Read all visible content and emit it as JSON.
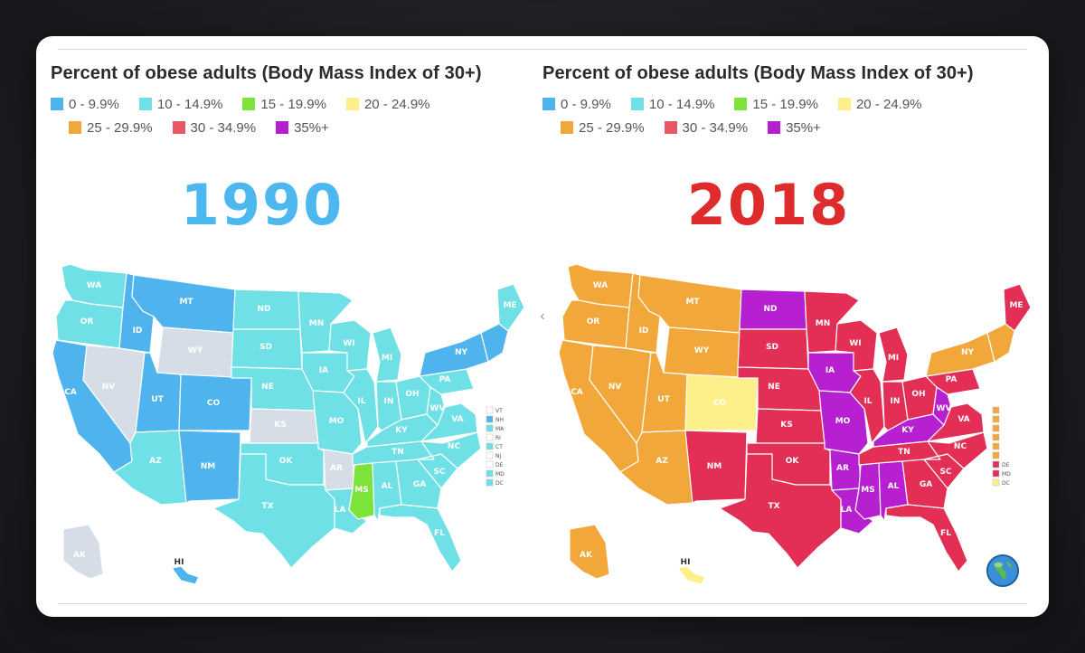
{
  "heading": "Percent of obese adults (Body Mass Index of 30+)",
  "legend": [
    {
      "label": "0 - 9.9%",
      "color": "#4fb4ee"
    },
    {
      "label": "10 - 14.9%",
      "color": "#6fe0e6"
    },
    {
      "label": "15 - 19.9%",
      "color": "#7ce33b"
    },
    {
      "label": "20 - 24.9%",
      "color": "#fdf08a"
    },
    {
      "label": "25 - 29.9%",
      "color": "#f2a73a"
    },
    {
      "label": "30 - 34.9%",
      "color": "#e85766"
    },
    {
      "label": "35%+",
      "color": "#b620d0"
    }
  ],
  "panels": [
    {
      "year": "1990",
      "year_color": "#4cb8ef",
      "states": {
        "WA": "#6fe0e6",
        "OR": "#6fe0e6",
        "CA": "#4fb4ee",
        "NV": "#d7dde6",
        "ID": "#4fb4ee",
        "MT": "#4fb4ee",
        "WY": "#d7dde6",
        "UT": "#4fb4ee",
        "CO": "#4fb4ee",
        "AZ": "#6fe0e6",
        "NM": "#4fb4ee",
        "ND": "#6fe0e6",
        "SD": "#6fe0e6",
        "NE": "#6fe0e6",
        "KS": "#d7dde6",
        "OK": "#6fe0e6",
        "TX": "#6fe0e6",
        "MN": "#6fe0e6",
        "IA": "#6fe0e6",
        "MO": "#6fe0e6",
        "AR": "#d7dde6",
        "LA": "#6fe0e6",
        "WI": "#6fe0e6",
        "IL": "#6fe0e6",
        "MI": "#6fe0e6",
        "IN": "#6fe0e6",
        "OH": "#6fe0e6",
        "KY": "#6fe0e6",
        "TN": "#6fe0e6",
        "MS": "#7ce33b",
        "AL": "#6fe0e6",
        "GA": "#6fe0e6",
        "FL": "#6fe0e6",
        "SC": "#6fe0e6",
        "NC": "#6fe0e6",
        "VA": "#6fe0e6",
        "WV": "#6fe0e6",
        "PA": "#6fe0e6",
        "NY": "#4fb4ee",
        "ME": "#6fe0e6",
        "NE_states": "#4fb4ee",
        "AK": "#d7dde6",
        "HI": "#4fb4ee"
      },
      "side_list": [
        {
          "code": "VT",
          "color": "#ffffff"
        },
        {
          "code": "NH",
          "color": "#4fb4ee"
        },
        {
          "code": "MA",
          "color": "#6fe0e6"
        },
        {
          "code": "RI",
          "color": "#ffffff"
        },
        {
          "code": "CT",
          "color": "#6fe0e6"
        },
        {
          "code": "NJ",
          "color": "#ffffff"
        },
        {
          "code": "DE",
          "color": "#ffffff"
        },
        {
          "code": "MD",
          "color": "#6fe0e6"
        },
        {
          "code": "DC",
          "color": "#6fe0e6"
        }
      ]
    },
    {
      "year": "2018",
      "year_color": "#de2c2c",
      "states": {
        "WA": "#f2a73a",
        "OR": "#f2a73a",
        "CA": "#f2a73a",
        "NV": "#f2a73a",
        "ID": "#f2a73a",
        "MT": "#f2a73a",
        "WY": "#f2a73a",
        "UT": "#f2a73a",
        "CO": "#fdf08a",
        "AZ": "#f2a73a",
        "NM": "#e32e55",
        "ND": "#b620d0",
        "SD": "#e32e55",
        "NE": "#e32e55",
        "KS": "#e32e55",
        "OK": "#e32e55",
        "TX": "#e32e55",
        "MN": "#e32e55",
        "IA": "#b620d0",
        "MO": "#b620d0",
        "AR": "#b620d0",
        "LA": "#b620d0",
        "WI": "#e32e55",
        "IL": "#e32e55",
        "MI": "#e32e55",
        "IN": "#e32e55",
        "OH": "#e32e55",
        "KY": "#b620d0",
        "TN": "#e32e55",
        "MS": "#b620d0",
        "AL": "#b620d0",
        "GA": "#e32e55",
        "FL": "#e32e55",
        "SC": "#e32e55",
        "NC": "#e32e55",
        "VA": "#e32e55",
        "WV": "#b620d0",
        "PA": "#e32e55",
        "NY": "#f2a73a",
        "ME": "#e32e55",
        "NE_states": "#f2a73a",
        "AK": "#f2a73a",
        "HI": "#fdf08a"
      },
      "side_list": [
        {
          "code": "",
          "color": "#f2a73a"
        },
        {
          "code": "",
          "color": "#f2a73a"
        },
        {
          "code": "",
          "color": "#f2a73a"
        },
        {
          "code": "",
          "color": "#f2a73a"
        },
        {
          "code": "",
          "color": "#f2a73a"
        },
        {
          "code": "",
          "color": "#f2a73a"
        },
        {
          "code": "DE",
          "color": "#e32e55"
        },
        {
          "code": "MD",
          "color": "#e32e55"
        },
        {
          "code": "DC",
          "color": "#fdf08a"
        }
      ]
    }
  ]
}
